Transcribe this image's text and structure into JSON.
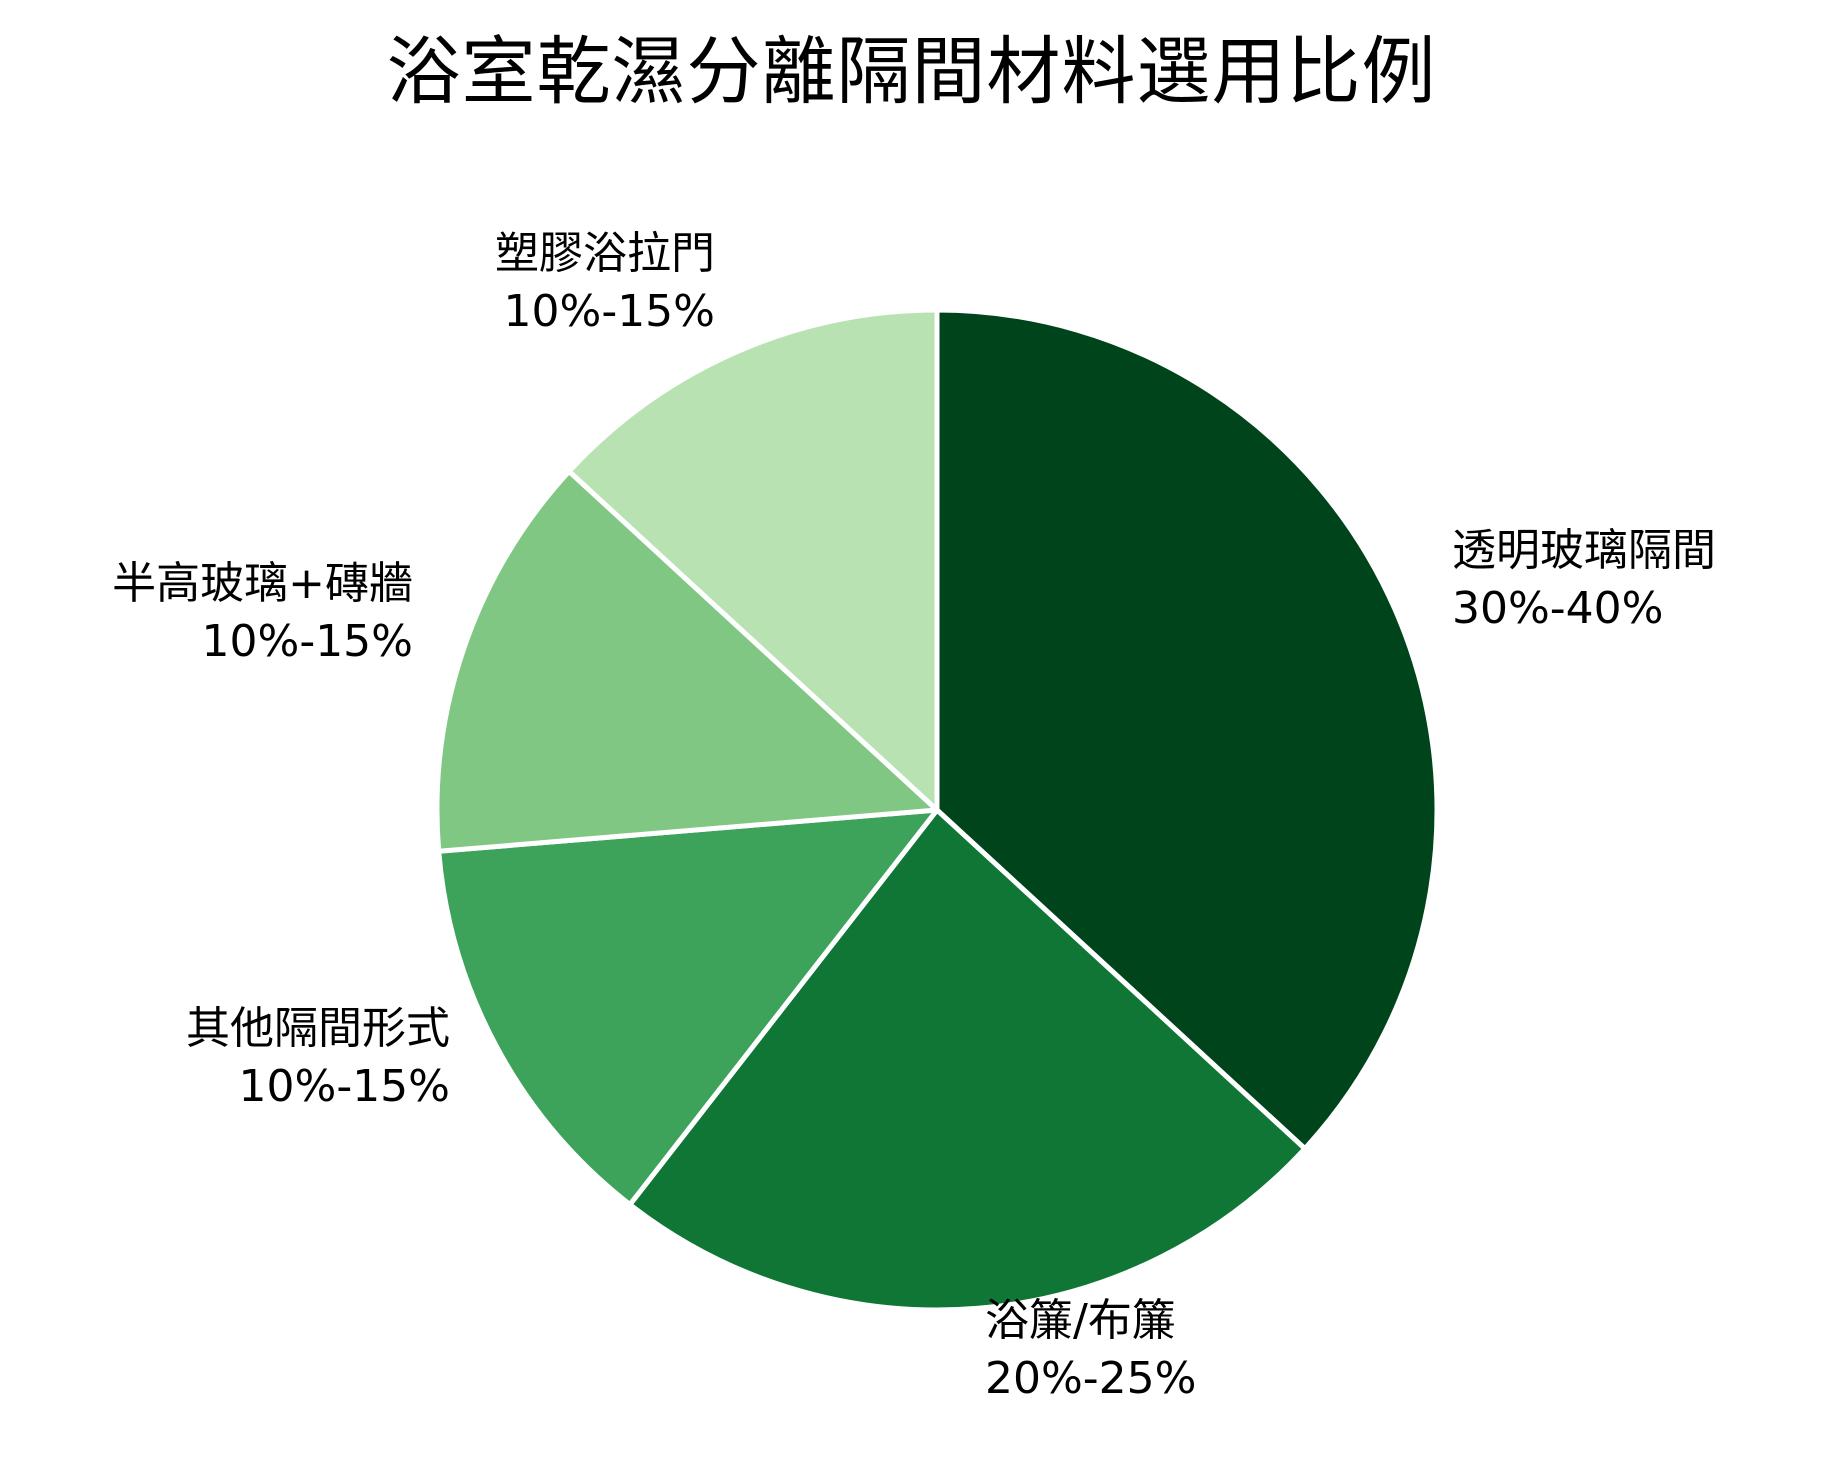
{
  "chart_data": {
    "type": "pie",
    "title": "浴室乾濕分離隔間材料選用比例",
    "categories": [
      "透明玻璃隔間",
      "浴簾/布簾",
      "其他隔間形式",
      "半高玻璃+磚牆",
      "塑膠浴拉門"
    ],
    "labels": [
      "30%-40%",
      "20%-25%",
      "10%-15%",
      "10%-15%",
      "10%-15%"
    ],
    "values": [
      35,
      22.5,
      12.5,
      12.5,
      12.5
    ],
    "colors": [
      "#00441b",
      "#0f7636",
      "#3da35b",
      "#80c784",
      "#b8e2b2"
    ],
    "start_angle_deg": 0,
    "direction": "clockwise",
    "legend": "none (direct labels)"
  },
  "title": "浴室乾濕分離隔間材料選用比例",
  "slices": [
    {
      "name": "透明玻璃隔間",
      "range": "30%-40%"
    },
    {
      "name": "浴簾/布簾",
      "range": "20%-25%"
    },
    {
      "name": "其他隔間形式",
      "range": "10%-15%"
    },
    {
      "name": "半高玻璃+磚牆",
      "range": "10%-15%"
    },
    {
      "name": "塑膠浴拉門",
      "range": "10%-15%"
    }
  ]
}
